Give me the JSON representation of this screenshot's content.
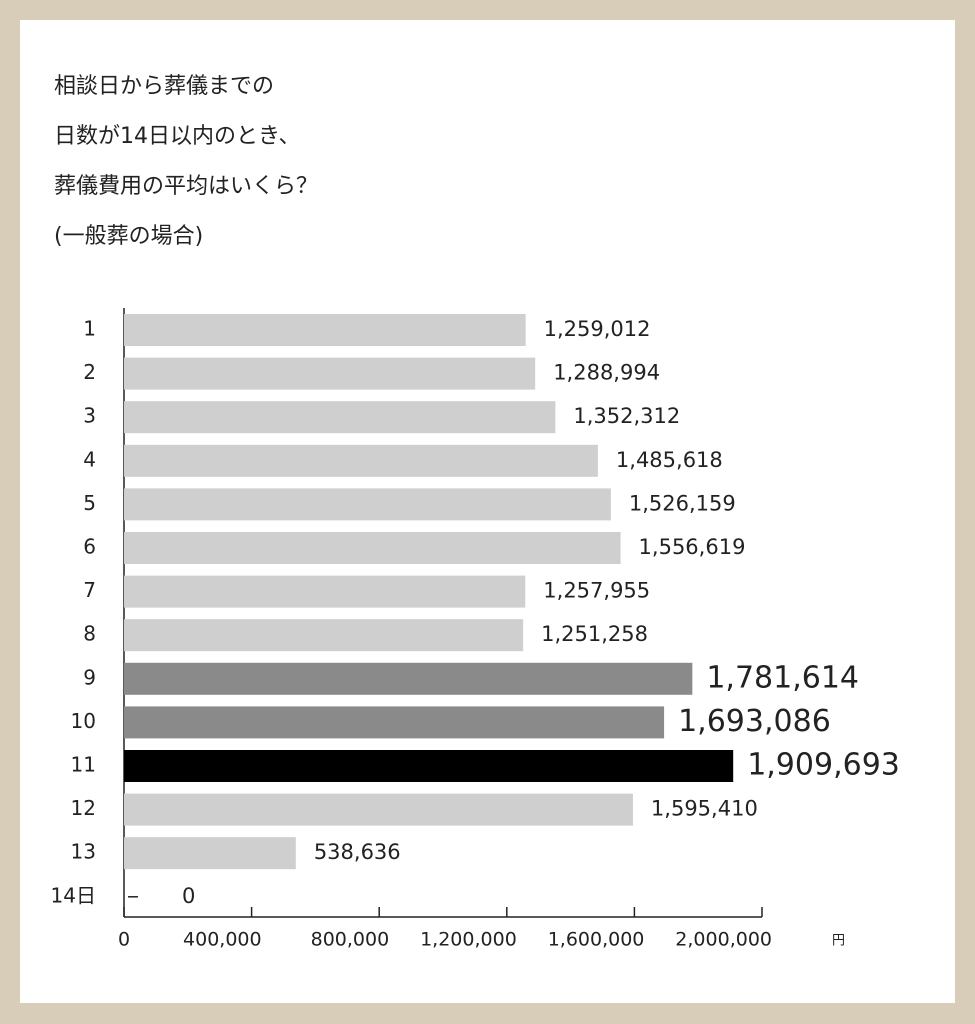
{
  "chart_data": {
    "type": "hbar",
    "title": [
      "相談日から葬儀までの",
      "日数が14日以内のとき、",
      "葬儀費用の平均はいくら？",
      "(一般葬の場合)"
    ],
    "categories": [
      "1",
      "2",
      "3",
      "4",
      "5",
      "6",
      "7",
      "8",
      "9",
      "10",
      "11",
      "12",
      "13",
      "14日"
    ],
    "values": [
      1259012,
      1288994,
      1352312,
      1485618,
      1526159,
      1556619,
      1257955,
      1251258,
      1781614,
      1693086,
      1909693,
      1595410,
      538636,
      0
    ],
    "value_labels": [
      "1,259,012",
      "1,288,994",
      "1,352,312",
      "1,485,618",
      "1,526,159",
      "1,556,619",
      "1,257,955",
      "1,251,258",
      "1,781,614",
      "1,693,086",
      "1,909,693",
      "1,595,410",
      "538,636",
      "0"
    ],
    "colors": [
      "#cfcfcf",
      "#cfcfcf",
      "#cfcfcf",
      "#cfcfcf",
      "#cfcfcf",
      "#cfcfcf",
      "#cfcfcf",
      "#cfcfcf",
      "#8a8a8a",
      "#8a8a8a",
      "#000000",
      "#cfcfcf",
      "#cfcfcf",
      "#cfcfcf"
    ],
    "xlim": [
      0,
      2000000
    ],
    "xticks": [
      0,
      {
        "value": 400000,
        "label": "400,000"
      },
      {
        "value": 800000,
        "label": "800,000"
      },
      {
        "value": 1200000,
        "label": "1,200,000"
      },
      {
        "value": 1600000,
        "label": "1,600,000"
      },
      {
        "value": 2000000,
        "label": "2,000,000"
      }
    ],
    "x_unit": "円"
  }
}
